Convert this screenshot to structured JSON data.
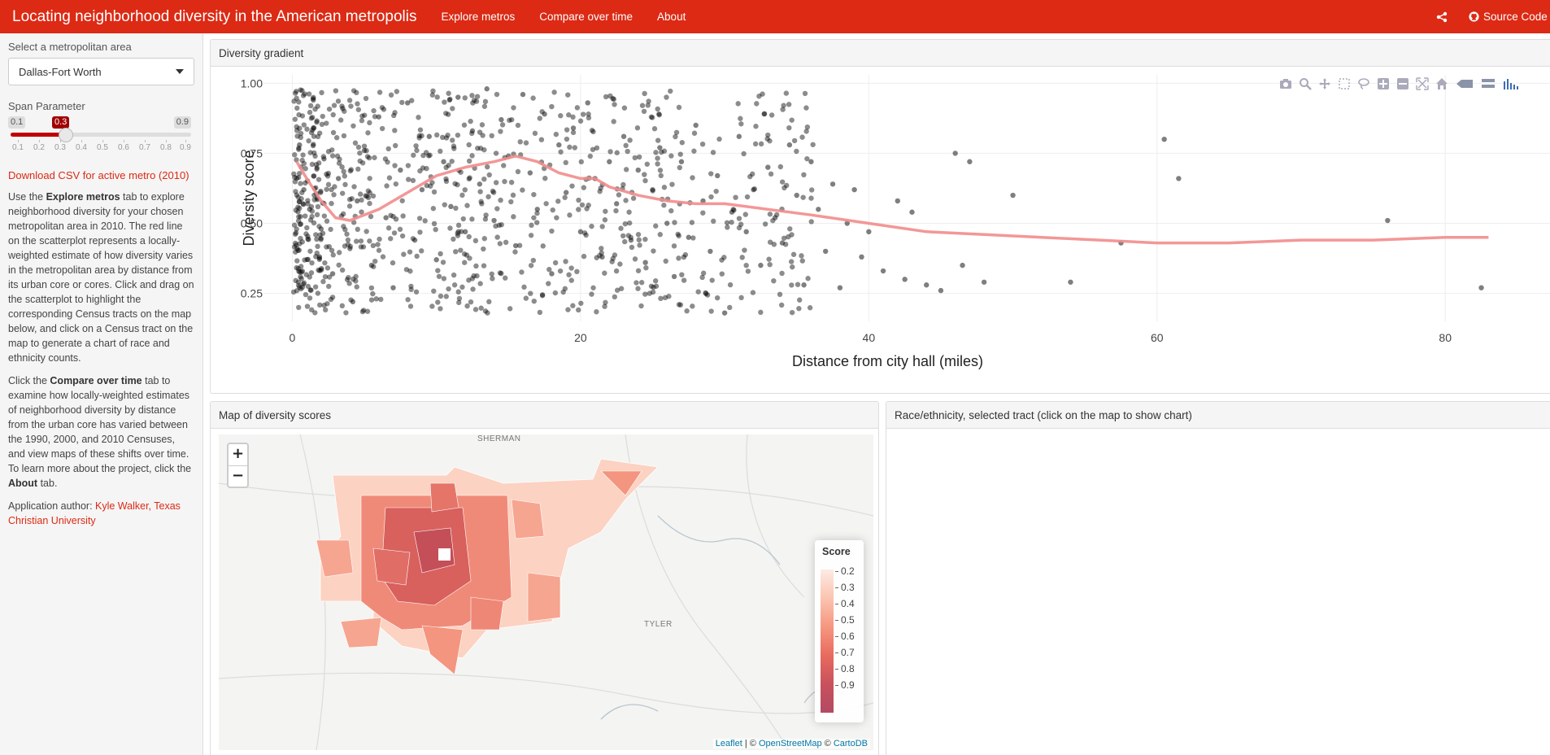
{
  "nav": {
    "brand": "Locating neighborhood diversity in the American metropolis",
    "links": [
      "Explore metros",
      "Compare over time",
      "About"
    ],
    "source_code": "Source Code"
  },
  "sidebar": {
    "metro_label": "Select a metropolitan area",
    "metro_selected": "Dallas-Fort Worth",
    "span_label": "Span Parameter",
    "span": {
      "min": "0.1",
      "max": "0.9",
      "value": "0.3"
    },
    "span_ticks": [
      "0.1",
      "0.2",
      "0.3",
      "0.4",
      "0.5",
      "0.6",
      "0.7",
      "0.8",
      "0.9"
    ],
    "download_link": "Download CSV for active metro (2010)",
    "p1": {
      "a": "Use the ",
      "b": "Explore metros",
      "c": " tab to explore neighborhood diversity for your chosen metropolitan area in 2010. The red line on the scatterplot represents a locally-weighted estimate of how diversity varies in the metropolitan area by distance from its urban core or cores. Click and drag on the scatterplot to highlight the corresponding Census tracts on the map below, and click on a Census tract on the map to generate a chart of race and ethnicity counts."
    },
    "p2": {
      "a": "Click the ",
      "b": "Compare over time",
      "c": " tab to examine how locally-weighted estimates of neighborhood diversity by distance from the urban core has varied between the 1990, 2000, and 2010 Censuses, and view maps of these shifts over time. To learn more about the project, click the ",
      "d": "About",
      "e": " tab."
    },
    "author": {
      "prefix": "Application author: ",
      "name": "Kyle Walker, Texas Christian University"
    }
  },
  "panels": {
    "gradient_title": "Diversity gradient",
    "map_title": "Map of diversity scores",
    "race_title": "Race/ethnicity, selected tract (click on the map to show chart)"
  },
  "modebar_icons": [
    "camera-icon",
    "zoom-icon",
    "pan-icon",
    "box-select-icon",
    "lasso-icon",
    "zoom-in-icon",
    "zoom-out-icon",
    "autoscale-icon",
    "reset-axes-icon",
    "spike-lines-icon",
    "compare-hover-icon",
    "plotly-logo-icon"
  ],
  "chart_data": {
    "type": "scatter",
    "xlabel": "Distance from city hall (miles)",
    "ylabel": "Diversity score",
    "xlim": [
      -2,
      88
    ],
    "ylim": [
      0.15,
      1.03
    ],
    "xticks": [
      0,
      20,
      40,
      60,
      80
    ],
    "yticks": [
      "0.25",
      "0.50",
      "0.75",
      "1.00"
    ],
    "point_color": "#000000",
    "line_color": "#f28c8c",
    "series": [
      {
        "type": "scatter",
        "x": [
          0.5,
          0.8,
          1.2,
          1.5,
          2,
          2.2,
          2.8,
          3.2,
          3.5,
          4,
          4.2,
          4.5,
          5,
          5.5,
          6,
          6.5,
          7,
          7.5,
          8,
          8.5,
          9,
          9.5,
          10,
          10.5,
          11,
          11.5,
          12,
          12.5,
          13,
          13.5,
          14,
          14.5,
          15,
          15.5,
          16,
          16.5,
          17,
          17.5,
          18,
          18.5,
          19,
          19.5,
          20,
          20.5,
          21,
          21.5,
          22,
          22.5,
          23,
          23.5,
          24,
          24.5,
          25,
          25.5,
          26,
          26.5,
          27,
          27.5,
          28,
          28.5,
          29,
          29.5,
          30,
          30.5,
          31,
          31.5,
          32,
          32.5,
          33,
          33.5,
          34,
          34.5,
          35,
          35.5,
          36,
          36.5,
          37,
          37.5,
          38,
          38.5,
          39,
          39.5,
          40,
          41,
          42,
          42.5,
          43,
          44,
          45,
          46,
          46.5,
          47,
          48,
          50,
          54,
          57.5,
          60.5,
          61.5,
          76,
          82.5
        ],
        "y": [
          0.78,
          0.62,
          0.55,
          0.84,
          0.48,
          0.73,
          0.32,
          0.66,
          0.91,
          0.41,
          0.22,
          0.58,
          0.76,
          0.35,
          0.88,
          0.52,
          0.27,
          0.69,
          0.93,
          0.44,
          0.62,
          0.81,
          0.37,
          0.72,
          0.56,
          0.95,
          0.47,
          0.83,
          0.64,
          0.98,
          0.51,
          0.87,
          0.74,
          0.42,
          0.96,
          0.68,
          0.55,
          0.89,
          0.32,
          0.78,
          0.61,
          0.84,
          0.47,
          0.93,
          0.66,
          0.38,
          0.72,
          0.57,
          0.81,
          0.44,
          0.69,
          0.36,
          0.62,
          0.77,
          0.5,
          0.31,
          0.72,
          0.45,
          0.85,
          0.58,
          0.4,
          0.67,
          0.18,
          0.54,
          0.81,
          0.47,
          0.62,
          0.35,
          0.7,
          0.52,
          0.43,
          0.78,
          0.6,
          0.28,
          0.72,
          0.55,
          0.4,
          0.64,
          0.27,
          0.5,
          0.62,
          0.38,
          0.47,
          0.33,
          0.58,
          0.3,
          0.54,
          0.28,
          0.26,
          0.75,
          0.35,
          0.72,
          0.29,
          0.6,
          0.29,
          0.43,
          0.8,
          0.66,
          0.51,
          0.27
        ]
      },
      {
        "type": "line",
        "name": "",
        "x": [
          0.3,
          1,
          2,
          3,
          4,
          6,
          8,
          10,
          12,
          14,
          15.5,
          17,
          18.5,
          20,
          21,
          22,
          24,
          26,
          28,
          30,
          33,
          36,
          40,
          44,
          48,
          52,
          56,
          60,
          65,
          70,
          75,
          80,
          83
        ],
        "y": [
          0.72,
          0.66,
          0.58,
          0.52,
          0.51,
          0.55,
          0.61,
          0.67,
          0.7,
          0.72,
          0.74,
          0.72,
          0.68,
          0.66,
          0.66,
          0.63,
          0.6,
          0.58,
          0.57,
          0.57,
          0.55,
          0.53,
          0.5,
          0.47,
          0.46,
          0.45,
          0.44,
          0.43,
          0.43,
          0.44,
          0.44,
          0.45,
          0.45
        ]
      }
    ]
  },
  "map": {
    "cities": [
      "SHERMAN",
      "TYLER"
    ],
    "legend_title": "Score",
    "legend_ticks": [
      "0.2",
      "0.3",
      "0.4",
      "0.5",
      "0.6",
      "0.7",
      "0.8",
      "0.9"
    ],
    "zoom_in": "+",
    "zoom_out": "−",
    "attribution": {
      "a": "Leaflet",
      "sep1": " | © ",
      "b": "OpenStreetMap",
      "sep2": " © ",
      "c": "CartoDB"
    }
  }
}
